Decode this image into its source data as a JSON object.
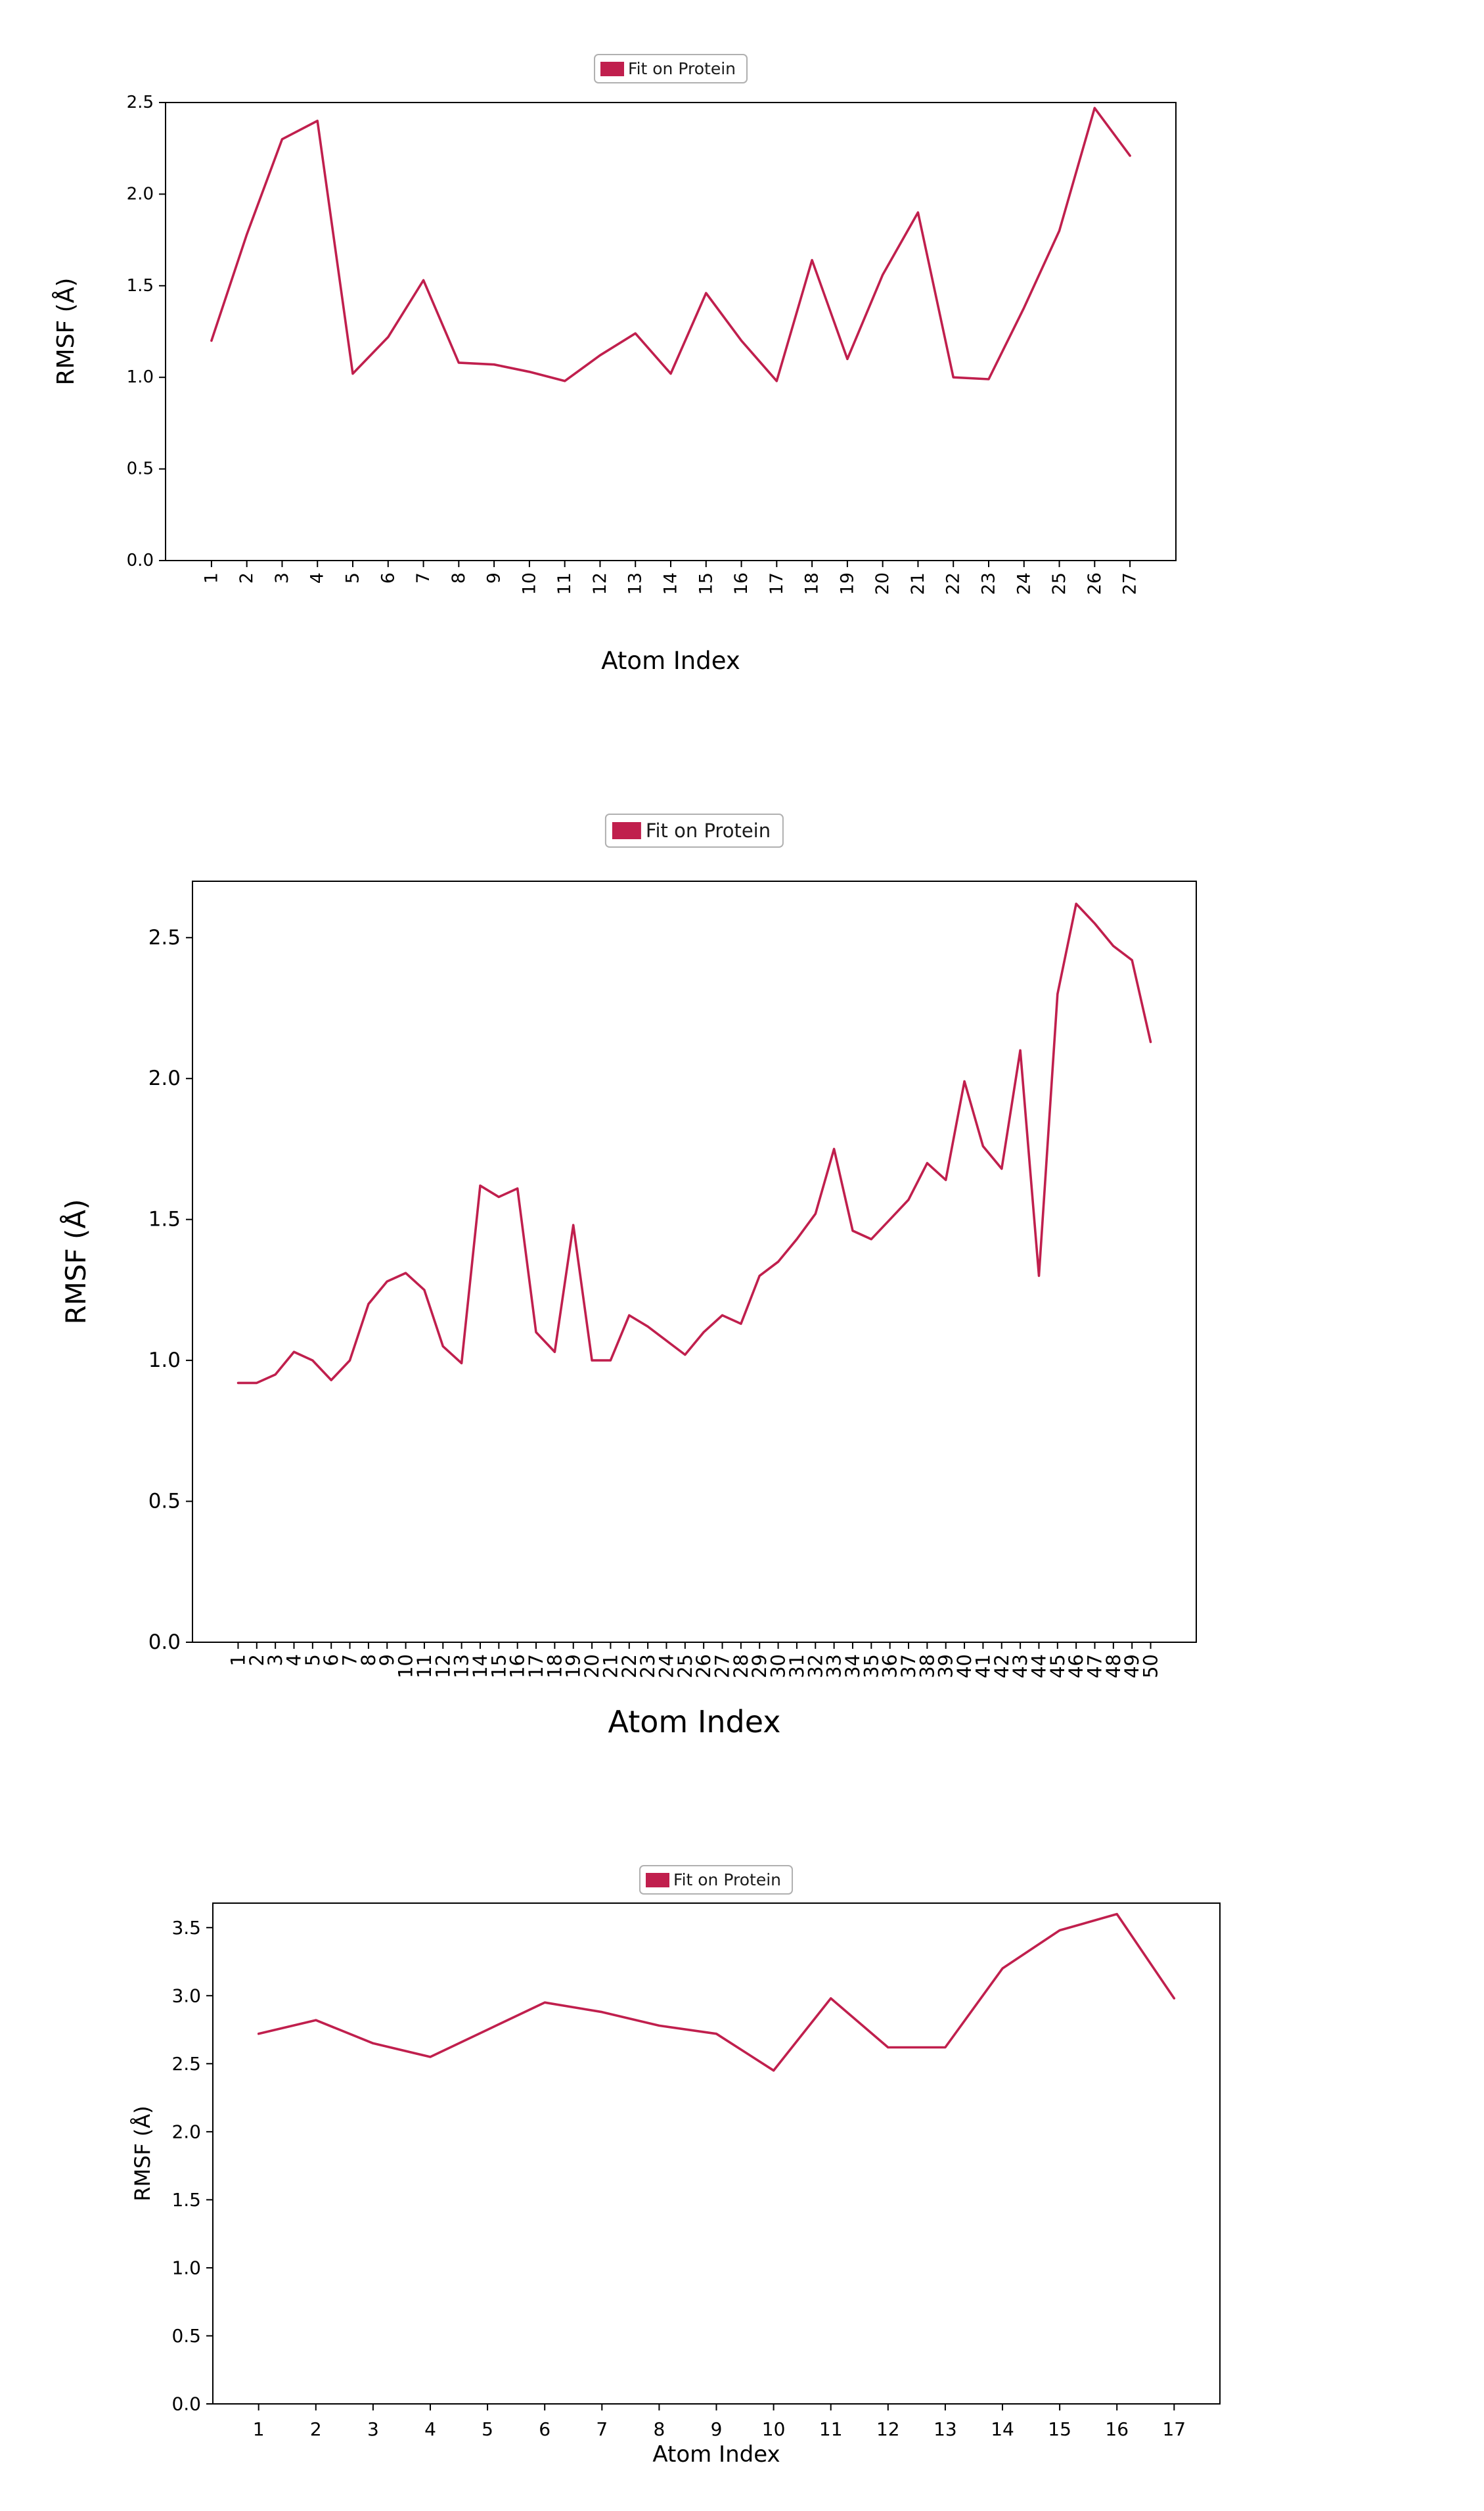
{
  "accent_color": "#c01f4d",
  "chart_data": [
    {
      "type": "line",
      "legend": "Fit on Protein",
      "xlabel": "Atom Index",
      "ylabel": "RMSF (Å)",
      "line_color": "#c01f4d",
      "grid": false,
      "legend_position": "top-center",
      "x": [
        1,
        2,
        3,
        4,
        5,
        6,
        7,
        8,
        9,
        10,
        11,
        12,
        13,
        14,
        15,
        16,
        17,
        18,
        19,
        20,
        21,
        22,
        23,
        24,
        25,
        26,
        27
      ],
      "values": [
        1.2,
        1.78,
        2.3,
        2.4,
        1.02,
        1.22,
        1.53,
        1.08,
        1.07,
        1.03,
        0.98,
        1.12,
        1.24,
        1.02,
        1.46,
        1.2,
        0.98,
        1.64,
        1.1,
        1.56,
        1.9,
        1.0,
        0.99,
        1.38,
        1.8,
        2.47,
        2.21
      ],
      "ylim": [
        0,
        2.5
      ],
      "yticks": [
        0.0,
        0.5,
        1.0,
        1.5,
        2.0,
        2.5
      ]
    },
    {
      "type": "line",
      "legend": "Fit on Protein",
      "xlabel": "Atom Index",
      "ylabel": "RMSF (Å)",
      "line_color": "#c01f4d",
      "grid": false,
      "legend_position": "top-center",
      "x": [
        1,
        2,
        3,
        4,
        5,
        6,
        7,
        8,
        9,
        10,
        11,
        12,
        13,
        14,
        15,
        16,
        17,
        18,
        19,
        20,
        21,
        22,
        23,
        24,
        25,
        26,
        27,
        28,
        29,
        30,
        31,
        32,
        33,
        34,
        35,
        36,
        37,
        38,
        39,
        40,
        41,
        42,
        43,
        44,
        45,
        46,
        47,
        48,
        49,
        50
      ],
      "values": [
        0.92,
        0.92,
        0.95,
        1.03,
        1.0,
        0.93,
        1.0,
        1.2,
        1.28,
        1.31,
        1.25,
        1.05,
        0.99,
        1.62,
        1.58,
        1.61,
        1.1,
        1.03,
        1.48,
        1.0,
        1.0,
        1.16,
        1.12,
        1.07,
        1.02,
        1.1,
        1.16,
        1.13,
        1.3,
        1.35,
        1.43,
        1.52,
        1.75,
        1.46,
        1.43,
        1.5,
        1.57,
        1.7,
        1.64,
        1.99,
        1.76,
        1.68,
        2.1,
        1.3,
        2.3,
        2.62,
        2.55,
        2.47,
        2.42,
        2.13
      ],
      "ylim": [
        0,
        2.7
      ],
      "yticks": [
        0.0,
        0.5,
        1.0,
        1.5,
        2.0,
        2.5
      ]
    },
    {
      "type": "line",
      "legend": "Fit on Protein",
      "xlabel": "Atom Index",
      "ylabel": "RMSF (Å)",
      "line_color": "#c01f4d",
      "grid": false,
      "legend_position": "top-center",
      "x": [
        1,
        2,
        3,
        4,
        5,
        6,
        7,
        8,
        9,
        10,
        11,
        12,
        13,
        14,
        15,
        16,
        17
      ],
      "values": [
        2.72,
        2.82,
        2.65,
        2.55,
        2.75,
        2.95,
        2.88,
        2.78,
        2.72,
        2.45,
        2.98,
        2.62,
        2.62,
        3.2,
        3.48,
        3.6,
        2.98
      ],
      "ylim": [
        0,
        3.68
      ],
      "yticks": [
        0.0,
        0.5,
        1.0,
        1.5,
        2.0,
        2.5,
        3.0,
        3.5
      ]
    }
  ]
}
